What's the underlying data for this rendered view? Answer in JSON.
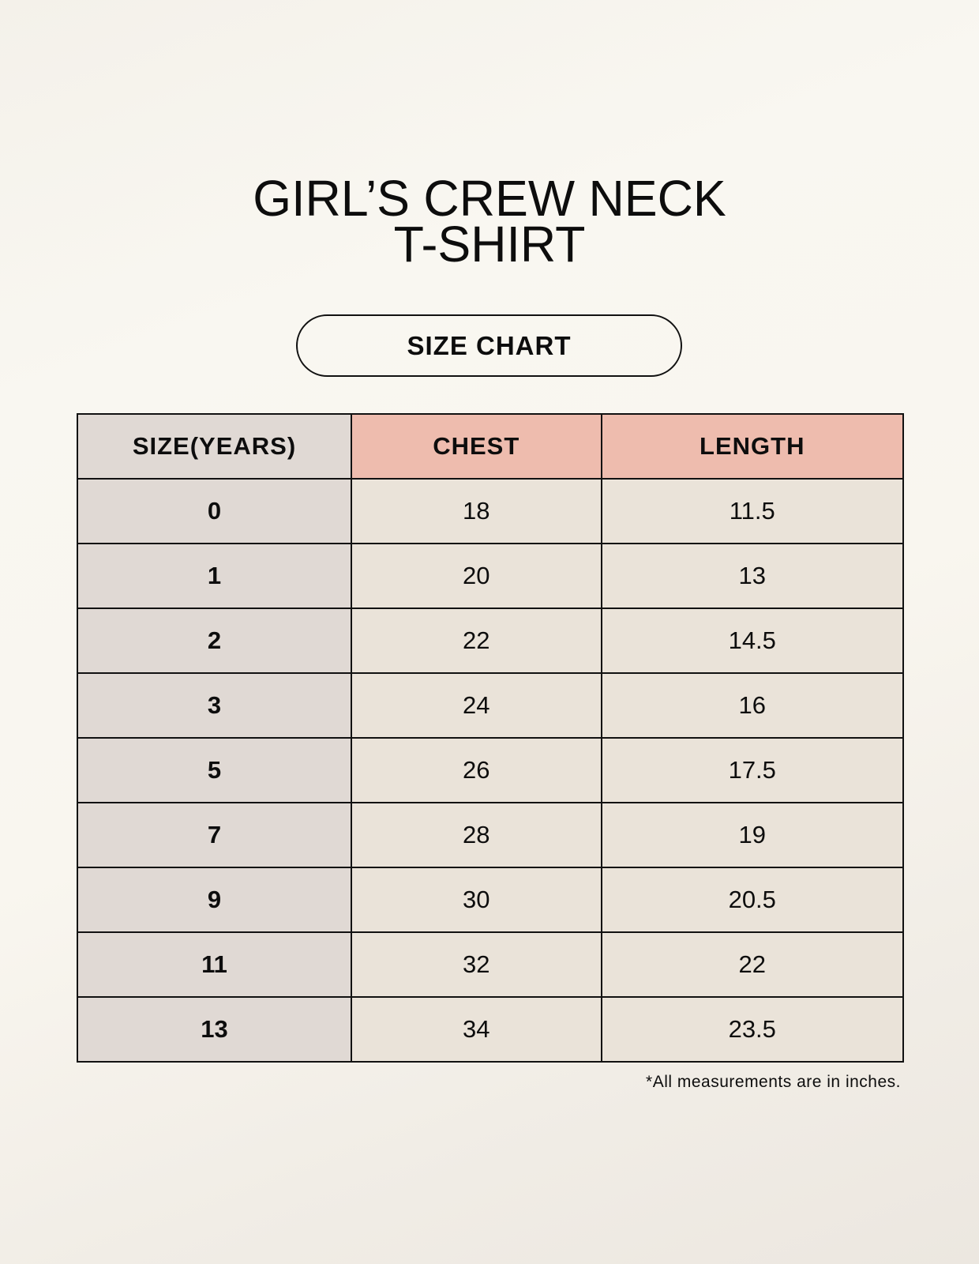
{
  "title": {
    "line1": "GIRL’S CREW NECK",
    "line2": "T-SHIRT"
  },
  "badge": "SIZE CHART",
  "table": {
    "headers": [
      "SIZE(YEARS)",
      "CHEST",
      "LENGTH"
    ],
    "rows": [
      [
        "0",
        "18",
        "11.5"
      ],
      [
        "1",
        "20",
        "13"
      ],
      [
        "2",
        "22",
        "14.5"
      ],
      [
        "3",
        "24",
        "16"
      ],
      [
        "5",
        "26",
        "17.5"
      ],
      [
        "7",
        "28",
        "19"
      ],
      [
        "9",
        "30",
        "20.5"
      ],
      [
        "11",
        "32",
        "22"
      ],
      [
        "13",
        "34",
        "23.5"
      ]
    ]
  },
  "footnote": "*All measurements are in inches.",
  "colors": {
    "header_size": "#e0d9d4",
    "header_measure": "#eebcae",
    "cell": "#eae3d9"
  }
}
